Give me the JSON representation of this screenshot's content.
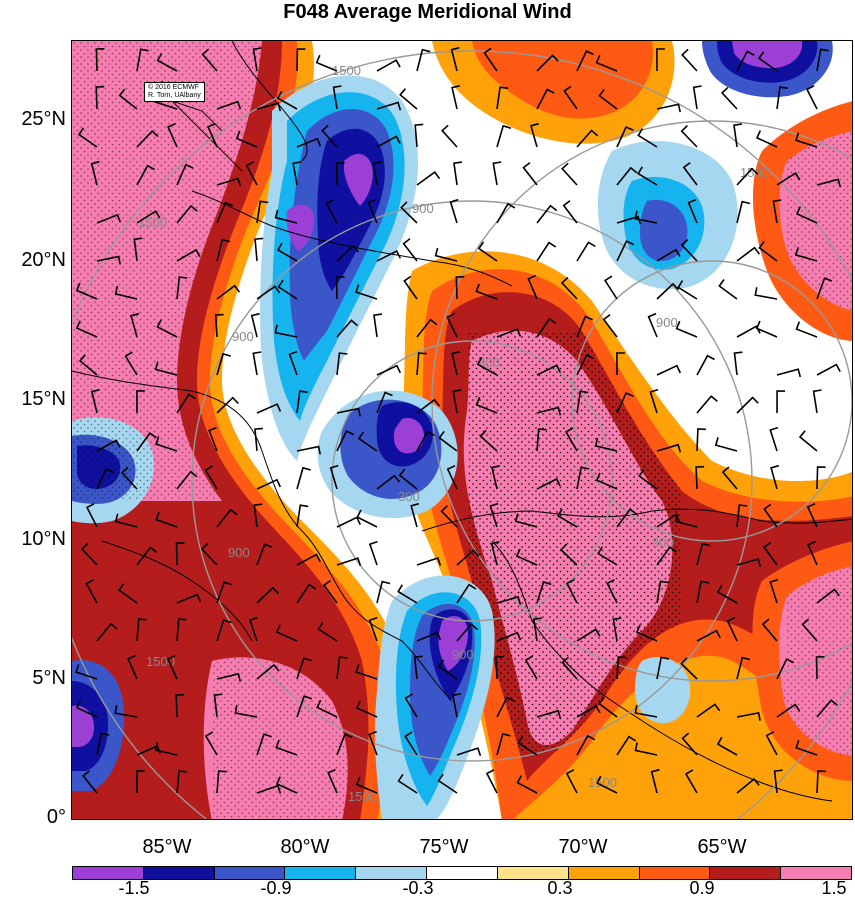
{
  "title": "F048 Average Meridional Wind",
  "credit": {
    "line1": "© 2016 ECMWF",
    "line2": "R. Torn, UAlbany"
  },
  "latitude_labels": [
    "25°N",
    "20°N",
    "15°N",
    "10°N",
    "5°N",
    "0°"
  ],
  "longitude_labels": [
    "85°W",
    "80°W",
    "75°W",
    "70°W",
    "65°W"
  ],
  "colorbar": {
    "colors": [
      "#9b3fd6",
      "#1010a0",
      "#3a56c8",
      "#16b4ef",
      "#a5d8f0",
      "#ffffff",
      "#ffe38a",
      "#ffa20a",
      "#ff5a14",
      "#b51d1d",
      "#f77db0"
    ],
    "labels": [
      "-1.5",
      "-0.9",
      "-0.3",
      "0.3",
      "0.9",
      "1.5"
    ]
  },
  "contour_labels": [
    "1500",
    "900",
    "300",
    "1500",
    "900",
    "300",
    "900",
    "1500",
    "900",
    "1500",
    "1500",
    "900",
    "1500",
    "900"
  ],
  "fill_colors": {
    "pink": "#f77db0",
    "darkred": "#b51d1d",
    "red": "#ff5a14",
    "orange": "#ffa20a",
    "yellow": "#ffe38a",
    "lightblue": "#a5d8f0",
    "cyan": "#16b4ef",
    "blue": "#3a56c8",
    "navy": "#1010a0",
    "purple": "#9b3fd6"
  }
}
